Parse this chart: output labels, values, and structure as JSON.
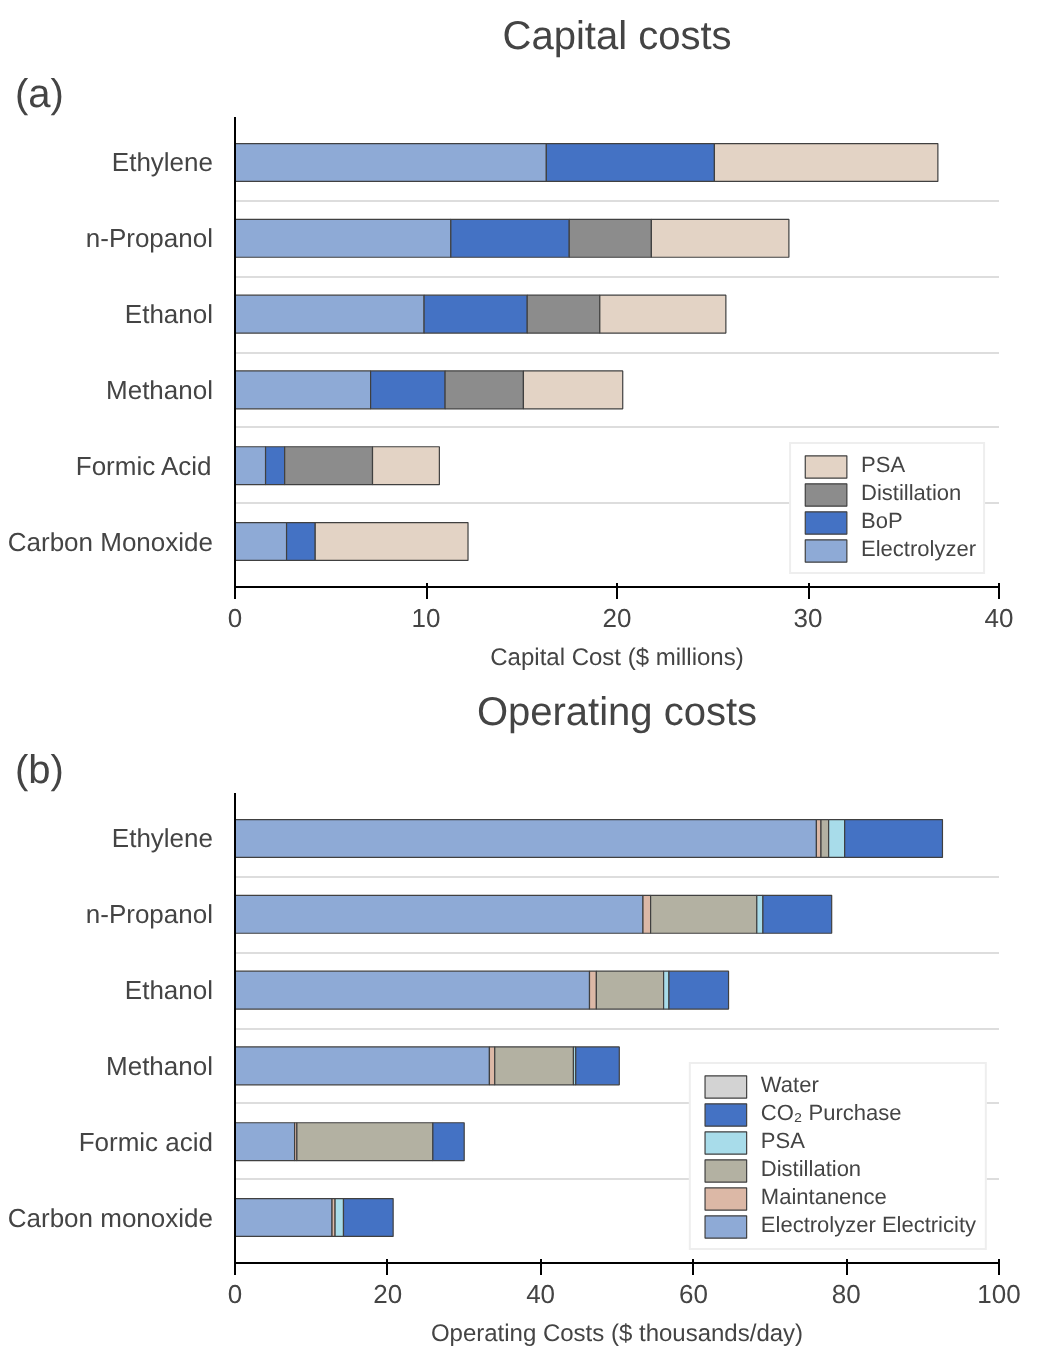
{
  "chart_data": [
    {
      "type": "bar",
      "orientation": "horizontal",
      "stacked": true,
      "title": "Capital costs",
      "xlabel": "Capital Cost ($ millions)",
      "annotations": [
        "(a)"
      ],
      "categories": [
        "Ethylene",
        "n-Propanol",
        "Ethanol",
        "Methanol",
        "Formic Acid",
        "Carbon Monoxide"
      ],
      "series": [
        {
          "name": "Electrolyzer",
          "color": "#8eaad6",
          "values": [
            16.3,
            11.3,
            9.9,
            7.1,
            1.6,
            2.7
          ]
        },
        {
          "name": "BoP",
          "color": "#4472c4",
          "values": [
            8.8,
            6.2,
            5.4,
            3.9,
            1.0,
            1.5
          ]
        },
        {
          "name": "Distillation",
          "color": "#8c8c8c",
          "values": [
            0,
            4.3,
            3.8,
            4.1,
            4.6,
            0
          ]
        },
        {
          "name": "PSA",
          "color": "#e3d3c5",
          "values": [
            11.7,
            7.2,
            6.6,
            5.2,
            3.5,
            8.0
          ]
        }
      ],
      "xlim": [
        0,
        40
      ],
      "xticks": [
        0,
        10,
        20,
        30,
        40
      ],
      "grid": "y",
      "legend": "bottom right"
    },
    {
      "type": "bar",
      "orientation": "horizontal",
      "stacked": true,
      "title": "Operating costs",
      "xlabel": "Operating Costs ($ thousands/day)",
      "annotations": [
        "(b)"
      ],
      "categories": [
        "Ethylene",
        "n-Propanol",
        "Ethanol",
        "Methanol",
        "Formic acid",
        "Carbon monoxide"
      ],
      "series": [
        {
          "name": "Electrolyzer Electricity",
          "color": "#8eaad6",
          "values": [
            76.1,
            53.4,
            46.4,
            33.3,
            7.8,
            12.7
          ]
        },
        {
          "name": "Maintanence",
          "color": "#dcb8a6",
          "values": [
            0.6,
            1.0,
            0.9,
            0.7,
            0.3,
            0.4
          ]
        },
        {
          "name": "Distillation",
          "color": "#b3b1a2",
          "values": [
            1.0,
            13.9,
            8.8,
            10.3,
            17.8,
            0
          ]
        },
        {
          "name": "PSA",
          "color": "#a8dcea",
          "values": [
            2.1,
            0.8,
            0.7,
            0.3,
            null,
            1.1
          ]
        },
        {
          "name": "CO₂ Purchase",
          "color": "#4472c4",
          "values": [
            12.8,
            9.0,
            7.8,
            5.7,
            4.1,
            6.5
          ]
        },
        {
          "name": "Water",
          "color": "#d3d3d3",
          "values": [
            0,
            0,
            0,
            0,
            0,
            0
          ]
        }
      ],
      "xlim": [
        0,
        100
      ],
      "xticks": [
        0,
        20,
        40,
        60,
        80,
        100
      ],
      "grid": "y",
      "legend": "bottom right"
    }
  ]
}
